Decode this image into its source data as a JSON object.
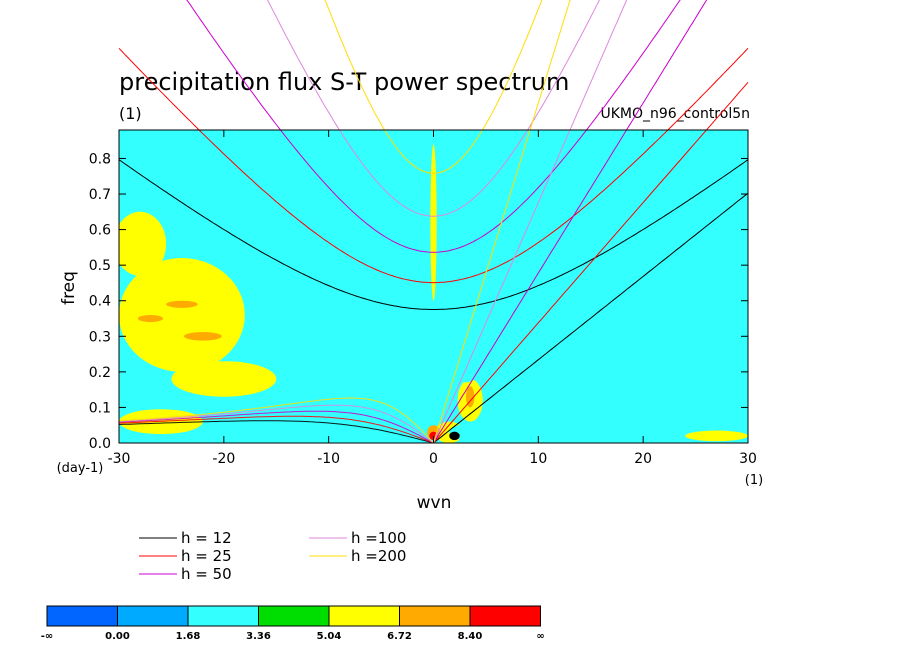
{
  "chart_data": {
    "type": "heatmap",
    "title": "precipitation flux S-T power spectrum",
    "subtitle_left": "(1)",
    "dataset_label": "UKMO_n96_control5n",
    "xlabel": "wvn",
    "ylabel": "freq",
    "x_unit_label": "(1)",
    "y_unit_label": "(day-1)",
    "xlim": [
      -30,
      30
    ],
    "ylim": [
      0,
      0.88
    ],
    "x_ticks": [
      "-30",
      "-20",
      "-10",
      "0",
      "10",
      "20",
      "30"
    ],
    "x_tick_values": [
      -30,
      -20,
      -10,
      0,
      10,
      20,
      30
    ],
    "y_ticks": [
      "0.0",
      "0.1",
      "0.2",
      "0.3",
      "0.4",
      "0.5",
      "0.6",
      "0.7",
      "0.8"
    ],
    "y_tick_values": [
      0.0,
      0.1,
      0.2,
      0.3,
      0.4,
      0.5,
      0.6,
      0.7,
      0.8
    ],
    "background_level_color": "#33ffff",
    "dispersion_curves": [
      {
        "label": "h = 12",
        "h": 12,
        "color": "#000000"
      },
      {
        "label": "h = 25",
        "h": 25,
        "color": "#ff0000"
      },
      {
        "label": "h = 50",
        "h": 50,
        "color": "#cc00cc"
      },
      {
        "label": "h =100",
        "h": 100,
        "color": "#dd88dd"
      },
      {
        "label": "h =200",
        "h": 200,
        "color": "#ffdd00"
      }
    ],
    "colorbar": {
      "labels": [
        "-∞",
        "0.00",
        "1.68",
        "3.36",
        "5.04",
        "6.72",
        "8.40",
        "∞"
      ],
      "colors": [
        "#0066ff",
        "#00aaff",
        "#33ffff",
        "#00dd00",
        "#ffff00",
        "#ffaa00",
        "#ff0000"
      ]
    },
    "regions": [
      {
        "level": 4,
        "x": -24,
        "y": 0.36,
        "rx": 6,
        "ry": 0.16
      },
      {
        "level": 4,
        "x": -28,
        "y": 0.56,
        "rx": 2.5,
        "ry": 0.09
      },
      {
        "level": 4,
        "x": -20,
        "y": 0.18,
        "rx": 5,
        "ry": 0.05
      },
      {
        "level": 4,
        "x": -26,
        "y": 0.06,
        "rx": 4,
        "ry": 0.035
      },
      {
        "level": 4,
        "x": 1.5,
        "y": 0.03,
        "rx": 1.4,
        "ry": 0.03
      },
      {
        "level": 4,
        "x": 3.5,
        "y": 0.12,
        "rx": 1.2,
        "ry": 0.06
      },
      {
        "level": 4,
        "x": 27,
        "y": 0.02,
        "rx": 3,
        "ry": 0.015
      },
      {
        "level": 4,
        "x": 0,
        "y": 0.62,
        "rx": 0.3,
        "ry": 0.22
      },
      {
        "level": 2,
        "x": 14,
        "y": 0.17,
        "rx": 7,
        "ry": 0.12
      },
      {
        "level": 2,
        "x": -4,
        "y": 0.35,
        "rx": 1.8,
        "ry": 0.15
      },
      {
        "level": 2,
        "x": 3,
        "y": 0.25,
        "rx": 2,
        "ry": 0.08
      },
      {
        "level": 2,
        "x": -14,
        "y": 0.03,
        "rx": 3,
        "ry": 0.02
      },
      {
        "level": 2,
        "x": 5,
        "y": 0.03,
        "rx": 3.5,
        "ry": 0.03
      },
      {
        "level": 5,
        "x": -24,
        "y": 0.39,
        "rx": 1.5,
        "ry": 0.01
      },
      {
        "level": 5,
        "x": -22,
        "y": 0.3,
        "rx": 1.8,
        "ry": 0.012
      },
      {
        "level": 5,
        "x": -27,
        "y": 0.35,
        "rx": 1.2,
        "ry": 0.01
      },
      {
        "level": 5,
        "x": 0,
        "y": 0.03,
        "rx": 0.6,
        "ry": 0.02
      },
      {
        "level": 5,
        "x": 3.5,
        "y": 0.13,
        "rx": 0.4,
        "ry": 0.03
      },
      {
        "level": 6,
        "x": 0,
        "y": 0.02,
        "rx": 0.4,
        "ry": 0.012
      },
      {
        "level": 7,
        "x": 2,
        "y": 0.02,
        "rx": 0.5,
        "ry": 0.012
      }
    ]
  }
}
